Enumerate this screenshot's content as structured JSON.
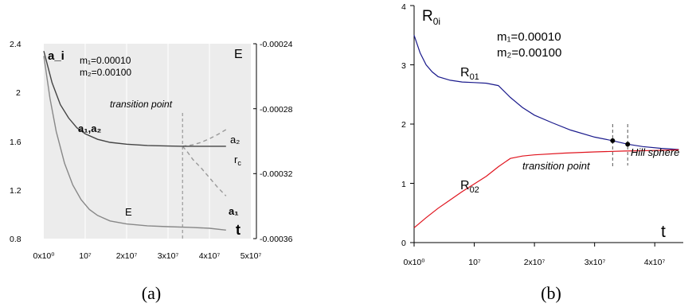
{
  "chart_data": [
    {
      "panel_label": "(a)",
      "type": "line",
      "xlim": [
        0,
        50000000
      ],
      "x_tick_labels": [
        "0x10⁰",
        "10⁷",
        "2x10⁷",
        "3x10⁷",
        "4x10⁷",
        "5x10⁷"
      ],
      "x_tick_values": [
        0,
        10000000,
        20000000,
        30000000,
        40000000,
        50000000
      ],
      "xlabel": "t",
      "ylabel_left": "a_i",
      "ylim_left": [
        0.8,
        2.4
      ],
      "y_tick_labels_left": [
        "0.8",
        "1.2",
        "1.6",
        "2",
        "2.4"
      ],
      "y_tick_values_left": [
        0.8,
        1.2,
        1.6,
        2.0,
        2.4
      ],
      "ylabel_right": "E",
      "ylim_right": [
        -0.00036,
        -0.00024
      ],
      "y_tick_labels_right": [
        "-0.00024",
        "-0.00028",
        "-0.00032",
        "-0.00036"
      ],
      "y_tick_values_right": [
        -0.00024,
        -0.00028,
        -0.00032,
        -0.00036
      ],
      "params": [
        "m₁=0.00010",
        "m₂=0.00100"
      ],
      "annotations": {
        "transition": "transition point",
        "a12": "a₁,a₂",
        "a1": "a₁",
        "a2": "a₂",
        "rc": "r",
        "rc_sub": "c",
        "E": "E"
      },
      "transition_x": 33500000,
      "series": [
        {
          "name": "a₁,a₂",
          "color": "#444444",
          "dash": "",
          "x": [
            0,
            2000000,
            4000000,
            6000000,
            8000000,
            10000000,
            13000000,
            16000000,
            20000000,
            25000000,
            30000000,
            33500000
          ],
          "y": [
            2.34,
            2.08,
            1.9,
            1.79,
            1.71,
            1.66,
            1.615,
            1.59,
            1.575,
            1.565,
            1.56,
            1.558
          ]
        },
        {
          "name": "a₂",
          "color": "#999999",
          "dash": "5,4",
          "x": [
            33500000,
            36000000,
            38000000,
            40000000,
            42000000,
            44000000
          ],
          "y": [
            1.558,
            1.57,
            1.59,
            1.62,
            1.655,
            1.695
          ]
        },
        {
          "name": "a₁",
          "color": "#999999",
          "dash": "5,4",
          "x": [
            33500000,
            34500000,
            36000000,
            38000000,
            40000000,
            42000000,
            44000000
          ],
          "y": [
            1.558,
            1.52,
            1.45,
            1.38,
            1.3,
            1.22,
            1.15
          ]
        },
        {
          "name": "r_c",
          "color": "#444444",
          "dash": "",
          "x": [
            33500000,
            44000000
          ],
          "y": [
            1.558,
            1.558
          ]
        },
        {
          "name": "E",
          "color": "#888888",
          "dash": "",
          "x": [
            0,
            1500000,
            3000000,
            5000000,
            7000000,
            9000000,
            11000000,
            13000000,
            16000000,
            20000000,
            25000000,
            30000000,
            35000000,
            40000000,
            44000000
          ],
          "y": [
            2.3,
            1.95,
            1.68,
            1.42,
            1.24,
            1.12,
            1.04,
            0.99,
            0.945,
            0.92,
            0.905,
            0.898,
            0.893,
            0.885,
            0.87
          ]
        }
      ]
    },
    {
      "panel_label": "(b)",
      "type": "line",
      "xlim": [
        0,
        45000000
      ],
      "x_tick_labels": [
        "0x10⁰",
        "10⁷",
        "2x10⁷",
        "3x10⁷",
        "4x10⁷"
      ],
      "x_tick_values": [
        0,
        10000000,
        20000000,
        30000000,
        40000000
      ],
      "xlabel": "t",
      "ylabel": "R",
      "ylabel_sub": "0i",
      "ylim": [
        0,
        4
      ],
      "y_tick_labels": [
        "0",
        "1",
        "2",
        "3",
        "4"
      ],
      "y_tick_values": [
        0,
        1,
        2,
        3,
        4
      ],
      "params": [
        "m₁=0.00010",
        "m₂=0.00100"
      ],
      "annotations": {
        "transition": "transition point",
        "hill": "Hill sphere"
      },
      "transition_x": 33000000,
      "hill_x": 35500000,
      "series": [
        {
          "name": "R",
          "name_sub": "01",
          "color": "#1a1a8c",
          "x": [
            0,
            1000000,
            2000000,
            3000000,
            4000000,
            6000000,
            8000000,
            10000000,
            12000000,
            14000000,
            16000000,
            18000000,
            20000000,
            23000000,
            26000000,
            30000000,
            33000000,
            35500000,
            38000000,
            41000000,
            44000000
          ],
          "y": [
            3.5,
            3.2,
            3.0,
            2.88,
            2.8,
            2.74,
            2.71,
            2.7,
            2.69,
            2.65,
            2.45,
            2.28,
            2.15,
            2.02,
            1.9,
            1.78,
            1.72,
            1.66,
            1.62,
            1.59,
            1.57
          ]
        },
        {
          "name": "R",
          "name_sub": "02",
          "color": "#e0141e",
          "x": [
            0,
            2000000,
            4000000,
            6000000,
            8000000,
            10000000,
            12000000,
            14000000,
            16000000,
            18000000,
            20000000,
            25000000,
            30000000,
            35000000,
            40000000,
            44000000
          ],
          "y": [
            0.25,
            0.42,
            0.58,
            0.72,
            0.86,
            0.99,
            1.12,
            1.28,
            1.42,
            1.46,
            1.48,
            1.51,
            1.53,
            1.545,
            1.555,
            1.565
          ]
        }
      ],
      "points": [
        {
          "x": 33000000,
          "y": 1.72
        },
        {
          "x": 35500000,
          "y": 1.66
        }
      ]
    }
  ]
}
